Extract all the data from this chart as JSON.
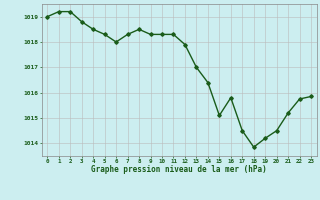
{
  "x": [
    0,
    1,
    2,
    3,
    4,
    5,
    6,
    7,
    8,
    9,
    10,
    11,
    12,
    13,
    14,
    15,
    16,
    17,
    18,
    19,
    20,
    21,
    22,
    23
  ],
  "y": [
    1019.0,
    1019.2,
    1019.2,
    1018.8,
    1018.5,
    1018.3,
    1018.0,
    1018.3,
    1018.5,
    1018.3,
    1018.3,
    1018.3,
    1017.9,
    1017.0,
    1016.4,
    1015.1,
    1015.8,
    1014.5,
    1013.85,
    1014.2,
    1014.5,
    1015.2,
    1015.75,
    1015.85
  ],
  "ylim": [
    1013.5,
    1019.5
  ],
  "yticks": [
    1014,
    1015,
    1016,
    1017,
    1018,
    1019
  ],
  "xlim": [
    -0.5,
    23.5
  ],
  "xticks": [
    0,
    1,
    2,
    3,
    4,
    5,
    6,
    7,
    8,
    9,
    10,
    11,
    12,
    13,
    14,
    15,
    16,
    17,
    18,
    19,
    20,
    21,
    22,
    23
  ],
  "xlabel": "Graphe pression niveau de la mer (hPa)",
  "line_color": "#1a5c1a",
  "marker": "D",
  "marker_size": 1.8,
  "background_color": "#cceef0",
  "grid_color": "#bbbbbb",
  "tick_label_color": "#1a5c1a",
  "xlabel_color": "#1a5c1a",
  "line_width": 1.0
}
